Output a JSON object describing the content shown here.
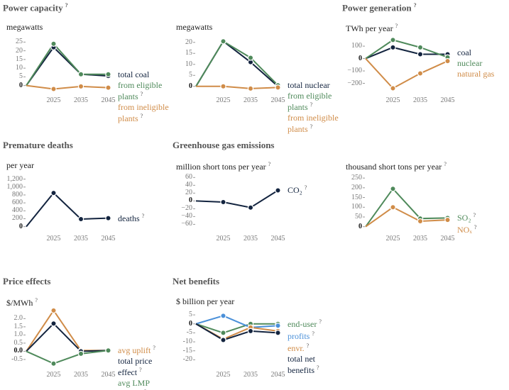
{
  "info_icon": "?",
  "chart_data": [
    {
      "type": "line",
      "title": "Power capacity",
      "title_info": true,
      "subtitle": "megawatts",
      "categories": [
        null,
        "2025",
        "2035",
        "2045"
      ],
      "ylim": [
        -3,
        28
      ],
      "yticks": [
        0,
        5,
        10,
        15,
        20,
        25
      ],
      "series": [
        {
          "name": "total coal",
          "color": "#13243f",
          "values": [
            0,
            22,
            6.5,
            5.5
          ]
        },
        {
          "name": "from eligible plants",
          "color": "#4f8a5b",
          "info": true,
          "values": [
            0,
            24,
            6.5,
            6.5
          ]
        },
        {
          "name": "from ineligible plants",
          "color": "#d08c48",
          "info": true,
          "values": [
            0,
            -2,
            -0.5,
            -1.2
          ]
        }
      ]
    },
    {
      "type": "line",
      "subtitle": "megawatts",
      "categories": [
        null,
        "2025",
        "2035",
        "2045"
      ],
      "ylim": [
        -2,
        22.5
      ],
      "yticks": [
        0,
        5,
        10,
        15,
        20
      ],
      "series": [
        {
          "name": "total nuclear",
          "color": "#13243f",
          "values": [
            0,
            20.5,
            11,
            0
          ]
        },
        {
          "name": "from eligible plants",
          "color": "#4f8a5b",
          "info": true,
          "values": [
            0,
            20.5,
            13,
            0.5
          ]
        },
        {
          "name": "from ineligible plants",
          "color": "#d08c48",
          "info": true,
          "values": [
            0,
            0,
            -1,
            -0.5
          ]
        }
      ]
    },
    {
      "type": "line",
      "title": "Power generation",
      "title_info": true,
      "subtitle": "TWh per year",
      "subtitle_info": true,
      "categories": [
        null,
        "2025",
        "2035",
        "2045"
      ],
      "ylim": [
        -260,
        175
      ],
      "yticks": [
        {
          "value": -200,
          "label": "−200"
        },
        {
          "value": -100,
          "label": "−100"
        },
        0,
        100
      ],
      "series": [
        {
          "name": "coal",
          "color": "#13243f",
          "values": [
            0,
            90,
            35,
            35
          ]
        },
        {
          "name": "nuclear",
          "color": "#4f8a5b",
          "values": [
            0,
            150,
            90,
            10
          ]
        },
        {
          "name": "natural gas",
          "color": "#d08c48",
          "values": [
            0,
            -240,
            -120,
            -20
          ]
        }
      ]
    },
    {
      "type": "line",
      "title": "Premature deaths",
      "subtitle": "per year",
      "categories": [
        null,
        "2025",
        "2035",
        "2045"
      ],
      "ylim": [
        -60,
        1300
      ],
      "yticks": [
        0,
        200,
        400,
        600,
        800,
        {
          "value": 1000,
          "label": "1,000"
        },
        {
          "value": 1200,
          "label": "1,200"
        }
      ],
      "series": [
        {
          "name": "deaths",
          "color": "#13243f",
          "info": true,
          "values": [
            0,
            850,
            190,
            215
          ]
        }
      ]
    },
    {
      "type": "line",
      "title": "Greenhouse gas emissions",
      "subtitle": "million short tons per year",
      "subtitle_info": true,
      "categories": [
        null,
        "2025",
        "2035",
        "2045"
      ],
      "ylim": [
        -72,
        66
      ],
      "yticks": [
        {
          "value": -60,
          "label": "−60"
        },
        {
          "value": -40,
          "label": "−40"
        },
        {
          "value": -20,
          "label": "−20"
        },
        0,
        20,
        40,
        60
      ],
      "series": [
        {
          "name": "CO₂",
          "color": "#13243f",
          "info": true,
          "values": [
            0,
            -3,
            -17,
            27
          ]
        }
      ]
    },
    {
      "type": "line",
      "subtitle": "thousand short tons per year",
      "subtitle_info": true,
      "categories": [
        null,
        "2025",
        "2035",
        "2045"
      ],
      "ylim": [
        -12,
        265
      ],
      "yticks": [
        0,
        50,
        100,
        150,
        200,
        250
      ],
      "series": [
        {
          "name": "SO₂",
          "color": "#4f8a5b",
          "info": true,
          "values": [
            0,
            195,
            42,
            45
          ]
        },
        {
          "name": "NOₓ",
          "color": "#d08c48",
          "info": true,
          "values": [
            0,
            100,
            28,
            35
          ]
        }
      ]
    },
    {
      "type": "line",
      "title": "Price effects",
      "subtitle": "$/MWh",
      "subtitle_info": true,
      "categories": [
        null,
        "2025",
        "2035",
        "2045"
      ],
      "ylim": [
        -0.85,
        2.45
      ],
      "yticks": [
        -0.5,
        {
          "value": 0,
          "label": "0.0"
        },
        0.5,
        {
          "value": 1,
          "label": "1.0"
        },
        1.5,
        {
          "value": 2,
          "label": "2.0"
        }
      ],
      "series": [
        {
          "name": "avg uplift",
          "color": "#d08c48",
          "info": true,
          "values": [
            0,
            2.5,
            0.05,
            0.05
          ]
        },
        {
          "name": "total price effect",
          "color": "#13243f",
          "info": true,
          "values": [
            0,
            1.7,
            0,
            0.05
          ]
        },
        {
          "name": "avg LMP change",
          "color": "#4f8a5b",
          "info": true,
          "values": [
            0,
            -0.75,
            -0.15,
            0.05
          ]
        }
      ]
    },
    {
      "type": "line",
      "title": "Net benefits",
      "subtitle": "$ billion per year",
      "categories": [
        null,
        "2025",
        "2035",
        "2045"
      ],
      "ylim": [
        -23,
        7
      ],
      "yticks": [
        {
          "value": -20,
          "label": "-20"
        },
        -15,
        -10,
        -5,
        0,
        5
      ],
      "series": [
        {
          "name": "end-user",
          "color": "#4f8a5b",
          "info": true,
          "values": [
            0,
            -5,
            0,
            0
          ]
        },
        {
          "name": "profits",
          "color": "#4a90d9",
          "info": true,
          "values": [
            0,
            4.5,
            -2,
            -1
          ]
        },
        {
          "name": "envr.",
          "color": "#d08c48",
          "info": true,
          "values": [
            0,
            -8.5,
            -2,
            -4
          ]
        },
        {
          "name": "total net benefits",
          "color": "#13243f",
          "info": true,
          "values": [
            0,
            -9,
            -4,
            -5
          ]
        }
      ]
    }
  ]
}
